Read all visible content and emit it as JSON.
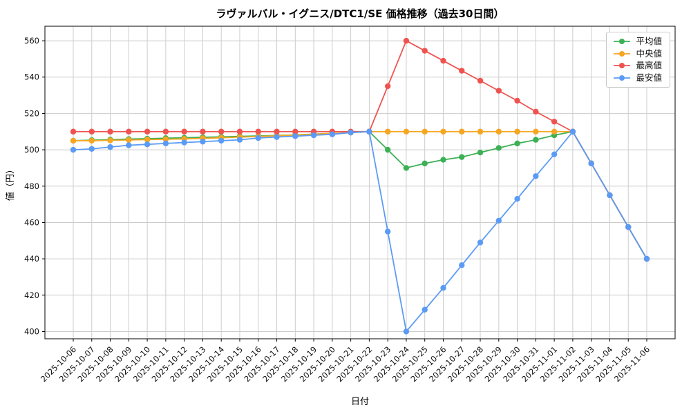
{
  "chart_data": {
    "type": "line",
    "title": "ラヴァルバル・イグニス/DTC1/SE 価格推移（過去30日間）",
    "xlabel": "日付",
    "ylabel": "値（円）",
    "grid": true,
    "grid_color": "#cccccc",
    "legend_position": "upper right",
    "ylim": [
      396,
      568
    ],
    "yticks": [
      400,
      420,
      440,
      460,
      480,
      500,
      520,
      540,
      560
    ],
    "categories": [
      "2025-10-06",
      "2025-10-07",
      "2025-10-08",
      "2025-10-09",
      "2025-10-10",
      "2025-10-11",
      "2025-10-12",
      "2025-10-13",
      "2025-10-14",
      "2025-10-15",
      "2025-10-16",
      "2025-10-17",
      "2025-10-18",
      "2025-10-19",
      "2025-10-20",
      "2025-10-21",
      "2025-10-22",
      "2025-10-23",
      "2025-10-24",
      "2025-10-25",
      "2025-10-26",
      "2025-10-27",
      "2025-10-28",
      "2025-10-29",
      "2025-10-30",
      "2025-10-31",
      "2025-11-01",
      "2025-11-02",
      "2025-11-03",
      "2025-11-04",
      "2025-11-05",
      "2025-11-06"
    ],
    "series": [
      {
        "key": "average",
        "name": "平均値",
        "color": "#3cb054",
        "values": [
          505,
          505.3,
          505.6,
          505.9,
          506.1,
          506.4,
          506.6,
          506.9,
          507.1,
          507.4,
          507.6,
          507.9,
          508.2,
          508.6,
          509,
          509.5,
          510,
          500,
          490,
          492.5,
          494.5,
          496,
          498.5,
          501,
          503.5,
          505.5,
          508,
          510,
          492.5,
          475,
          457.5,
          440
        ]
      },
      {
        "key": "median",
        "name": "中央値",
        "color": "#f5a623",
        "values": [
          505,
          505,
          505.2,
          505.4,
          505.6,
          505.8,
          506,
          506.3,
          506.6,
          507,
          507.3,
          507.7,
          508.1,
          508.5,
          509,
          509.5,
          510,
          510,
          510,
          510,
          510,
          510,
          510,
          510,
          510,
          510,
          510,
          510,
          492.5,
          475,
          457.5,
          440
        ]
      },
      {
        "key": "highest",
        "name": "最高値",
        "color": "#ef5350",
        "values": [
          510,
          510,
          510,
          510,
          510,
          510,
          510,
          510,
          510,
          510,
          510,
          510,
          510,
          510,
          510,
          510,
          510,
          535,
          560,
          554.5,
          549,
          543.5,
          538,
          532.5,
          527,
          521,
          515.5,
          510,
          492.5,
          475,
          457.5,
          440
        ]
      },
      {
        "key": "lowest",
        "name": "最安値",
        "color": "#5b9bf5",
        "values": [
          500,
          500.5,
          501.5,
          502.5,
          503,
          503.5,
          504,
          504.5,
          505,
          505.5,
          506.5,
          507,
          507.5,
          508,
          508.5,
          509.5,
          510,
          455,
          400,
          412,
          424,
          436.5,
          449,
          461,
          473,
          485.5,
          497.5,
          510,
          492.5,
          475,
          457.5,
          440
        ]
      }
    ]
  }
}
